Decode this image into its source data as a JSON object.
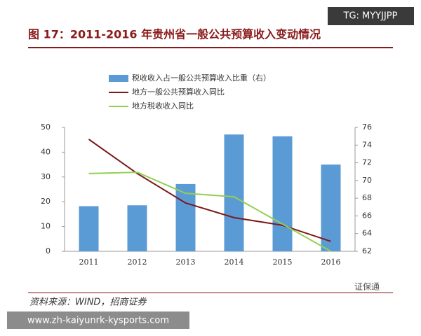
{
  "watermark_top": "TG: MYYJJPP",
  "watermark_bottom": "www.zh-kaiyunrk-kysports.com",
  "logo_text": "证保通",
  "source": "资料来源：WIND，招商证券",
  "chart_data": {
    "type": "bar-line",
    "title": "图 17：2011-2016 年贵州省一般公共预算收入变动情况",
    "categories": [
      "2011",
      "2012",
      "2013",
      "2014",
      "2015",
      "2016"
    ],
    "series": [
      {
        "name": "税收收入占一般公共预算收入比重（右）",
        "type": "bar",
        "axis": "y2",
        "color": "#5b9bd5",
        "values": [
          67.1,
          67.2,
          69.6,
          75.2,
          75.0,
          71.8
        ]
      },
      {
        "name": "地方一般公共预算收入同比",
        "type": "line",
        "color": "#7b1a1a",
        "values": [
          45.2,
          31.4,
          19.5,
          13.6,
          10.5,
          4.0
        ]
      },
      {
        "name": "地方税收收入同比",
        "type": "line",
        "color": "#92d050",
        "values": [
          31.4,
          31.9,
          23.4,
          22.0,
          11.0,
          0
        ]
      }
    ],
    "ylim": [
      0,
      50
    ],
    "yticks": [
      0,
      10,
      20,
      30,
      40,
      50
    ],
    "y2lim": [
      62,
      76
    ],
    "y2ticks": [
      62,
      64,
      66,
      68,
      70,
      72,
      74,
      76
    ]
  }
}
